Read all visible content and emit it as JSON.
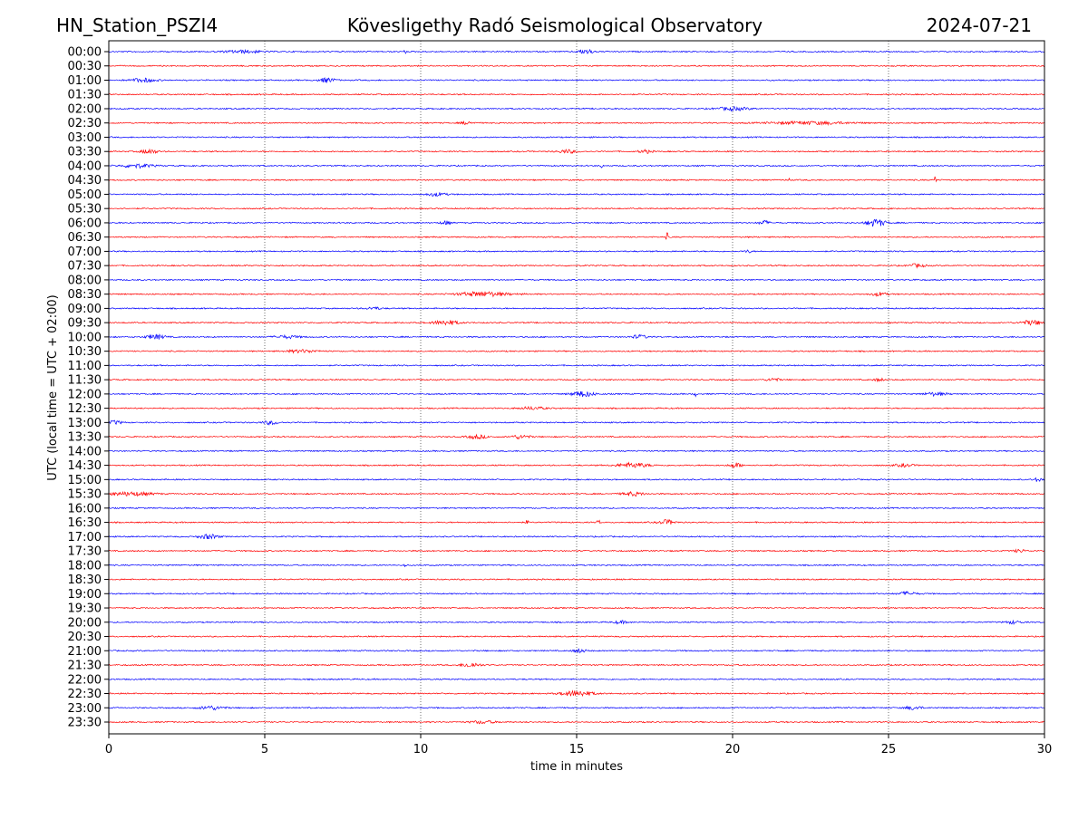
{
  "chart_data": {
    "type": "line",
    "subtype": "helicorder",
    "title_left": "HN_Station_PSZI4",
    "title_center": "Kövesligethy Radó Seismological Observatory",
    "title_right": "2024-07-21",
    "xlabel": "time in minutes",
    "ylabel": "UTC (local time = UTC + 02:00)",
    "xlim": [
      0,
      30
    ],
    "xticks": [
      "0",
      "5",
      "10",
      "15",
      "20",
      "25",
      "30"
    ],
    "xtick_values": [
      0,
      5,
      10,
      15,
      20,
      25,
      30
    ],
    "grid": "vertical dotted",
    "row_labels": [
      "00:00",
      "00:30",
      "01:00",
      "01:30",
      "02:00",
      "02:30",
      "03:00",
      "03:30",
      "04:00",
      "04:30",
      "05:00",
      "05:30",
      "06:00",
      "06:30",
      "07:00",
      "07:30",
      "08:00",
      "08:30",
      "09:00",
      "09:30",
      "10:00",
      "10:30",
      "11:00",
      "11:30",
      "12:00",
      "12:30",
      "13:00",
      "13:30",
      "14:00",
      "14:30",
      "15:00",
      "15:30",
      "16:00",
      "16:30",
      "17:00",
      "17:30",
      "18:00",
      "18:30",
      "19:00",
      "19:30",
      "20:00",
      "20:30",
      "21:00",
      "21:30",
      "22:00",
      "22:30",
      "23:00",
      "23:30"
    ],
    "colors": [
      "#0000ff",
      "#ff0000"
    ],
    "events": [
      [
        "00:00",
        4.3,
        1.5,
        1.2
      ],
      [
        "00:00",
        3.55,
        3,
        0.05
      ],
      [
        "00:00",
        9.5,
        2.5,
        0.05
      ],
      [
        "00:00",
        15.3,
        2.5,
        0.5
      ],
      [
        "01:00",
        1.1,
        2,
        0.8
      ],
      [
        "01:00",
        7.0,
        2.5,
        0.5
      ],
      [
        "02:00",
        20.0,
        1.8,
        1.0
      ],
      [
        "02:30",
        11.5,
        1.5,
        0.4
      ],
      [
        "02:30",
        22.5,
        1.5,
        2.5
      ],
      [
        "03:30",
        1.3,
        2.5,
        0.5
      ],
      [
        "03:30",
        14.7,
        1.8,
        0.6
      ],
      [
        "03:30",
        17.2,
        1.8,
        0.4
      ],
      [
        "04:00",
        0.9,
        2,
        1.0
      ],
      [
        "04:00",
        15.8,
        3,
        0.05
      ],
      [
        "04:30",
        21.8,
        4,
        0.05
      ],
      [
        "04:30",
        26.5,
        7,
        0.05
      ],
      [
        "05:00",
        10.5,
        1.8,
        0.6
      ],
      [
        "06:00",
        10.8,
        2,
        0.3
      ],
      [
        "06:00",
        21.0,
        2.5,
        0.3
      ],
      [
        "06:00",
        24.6,
        4,
        0.6
      ],
      [
        "06:30",
        17.9,
        5,
        0.05
      ],
      [
        "07:00",
        20.5,
        1.5,
        0.2
      ],
      [
        "07:30",
        25.9,
        1.8,
        0.5
      ],
      [
        "08:00",
        25.8,
        1.8,
        0.1
      ],
      [
        "08:30",
        12.0,
        2.5,
        1.6
      ],
      [
        "08:30",
        24.7,
        1.8,
        0.5
      ],
      [
        "09:00",
        8.5,
        1.2,
        0.5
      ],
      [
        "09:30",
        10.8,
        2.5,
        0.8
      ],
      [
        "09:30",
        29.6,
        2.5,
        0.7
      ],
      [
        "10:00",
        1.5,
        2.5,
        0.6
      ],
      [
        "10:00",
        5.7,
        1.5,
        0.8
      ],
      [
        "10:00",
        17.0,
        2,
        0.5
      ],
      [
        "10:30",
        6.2,
        1.5,
        1.0
      ],
      [
        "11:30",
        21.3,
        1.8,
        0.4
      ],
      [
        "11:30",
        24.7,
        1.5,
        0.3
      ],
      [
        "12:00",
        15.2,
        3,
        0.7
      ],
      [
        "12:00",
        18.8,
        3,
        0.05
      ],
      [
        "12:00",
        26.5,
        1.8,
        0.7
      ],
      [
        "12:30",
        13.6,
        1.5,
        0.8
      ],
      [
        "13:00",
        0.2,
        2,
        0.4
      ],
      [
        "13:00",
        5.2,
        2,
        0.5
      ],
      [
        "13:30",
        11.8,
        2,
        0.6
      ],
      [
        "13:30",
        13.2,
        2,
        0.6
      ],
      [
        "14:30",
        16.8,
        2.5,
        1.0
      ],
      [
        "14:30",
        20.1,
        2.5,
        0.4
      ],
      [
        "14:30",
        25.5,
        1.5,
        0.6
      ],
      [
        "15:00",
        29.8,
        2,
        0.3
      ],
      [
        "15:30",
        0.7,
        2,
        1.4
      ],
      [
        "15:30",
        16.8,
        2,
        0.7
      ],
      [
        "16:30",
        13.4,
        4,
        0.05
      ],
      [
        "16:30",
        15.7,
        7,
        0.05
      ],
      [
        "16:30",
        17.9,
        2.5,
        0.5
      ],
      [
        "17:00",
        3.2,
        2.5,
        0.6
      ],
      [
        "17:30",
        29.2,
        1.5,
        0.4
      ],
      [
        "18:00",
        9.5,
        3,
        0.05
      ],
      [
        "19:00",
        25.6,
        1.8,
        0.6
      ],
      [
        "20:00",
        16.4,
        1.5,
        0.4
      ],
      [
        "20:00",
        29.0,
        1.5,
        0.5
      ],
      [
        "21:00",
        15.1,
        2,
        0.4
      ],
      [
        "21:30",
        11.6,
        2.5,
        0.6
      ],
      [
        "22:30",
        15.0,
        3,
        1.0
      ],
      [
        "23:00",
        3.3,
        2,
        0.8
      ],
      [
        "23:00",
        25.8,
        2,
        0.5
      ],
      [
        "23:30",
        12.0,
        1.5,
        0.8
      ]
    ]
  }
}
